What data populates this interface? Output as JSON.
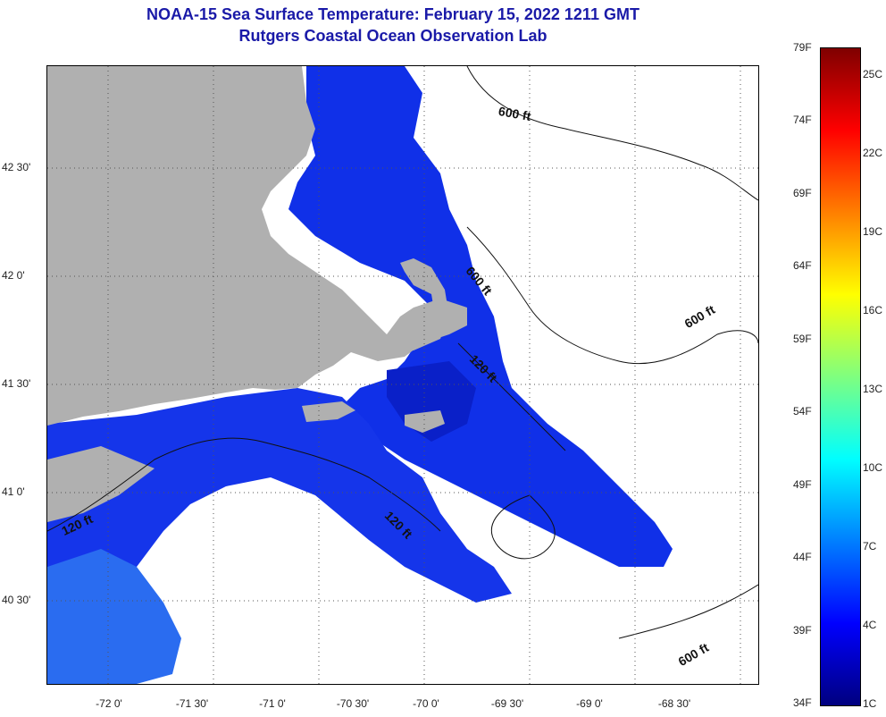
{
  "title": {
    "line1": "NOAA-15 Sea Surface Temperature:  February 15, 2022 1211 GMT",
    "line2": "Rutgers Coastal Ocean Observation Lab"
  },
  "latitude_labels": [
    "42 30'",
    "42 0'",
    "41 30'",
    "41 0'",
    "40 30'"
  ],
  "longitude_labels": [
    "-72 0'",
    "-71 30'",
    "-71 0'",
    "-70 30'",
    "-70 0'",
    "-69 30'",
    "-69 0'",
    "-68 30'"
  ],
  "contour_labels": [
    "600 ft",
    "600 ft",
    "120 ft",
    "600 ft",
    "120 ft",
    "120 ft",
    "600 ft"
  ],
  "colorbar": {
    "fahrenheit_labels": [
      "79F",
      "74F",
      "69F",
      "64F",
      "59F",
      "54F",
      "49F",
      "44F",
      "39F",
      "34F"
    ],
    "celsius_labels": [
      "25C",
      "22C",
      "19C",
      "16C",
      "13C",
      "10C",
      "7C",
      "4C",
      "1C"
    ]
  },
  "colors": {
    "title": "#1a1aa8",
    "land": "#b0b0b0",
    "no_data": "#ffffff",
    "cold_water": "#1030e8",
    "deep_blue": "#0a20c8",
    "colorbar_stops": [
      "#00007f",
      "#0000ff",
      "#007fff",
      "#00ffff",
      "#7fff7f",
      "#ffff00",
      "#ff7f00",
      "#ff0000",
      "#7f0000"
    ]
  }
}
